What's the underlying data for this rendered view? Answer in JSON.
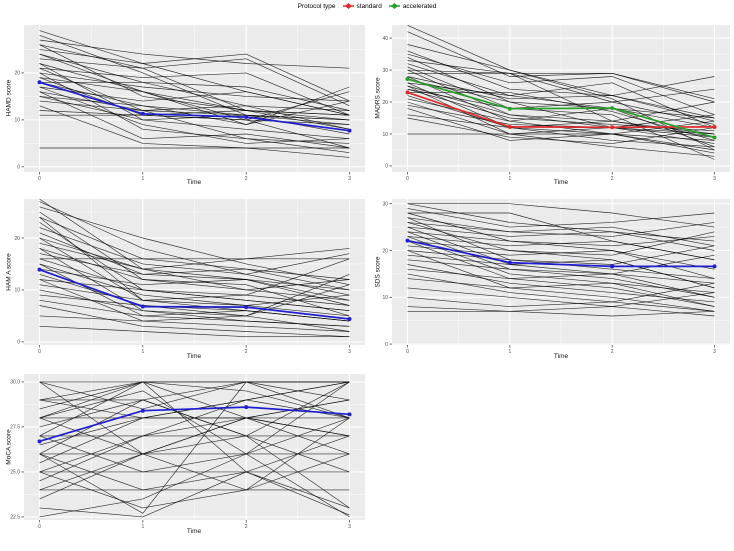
{
  "style": {
    "background": "#FFFFFF",
    "panel_bg": "#EBEBEB",
    "grid": "#FFFFFF",
    "tick_text": "#4D4D4D",
    "axis_title_text": "#111111",
    "subject_line": "#000000",
    "mean_blue": "#1F1FCF",
    "standard_red": "#DD2A2A",
    "accelerated_green": "#2B9E2B"
  },
  "chart_data": {
    "type": "line",
    "x": [
      0,
      1,
      2,
      3
    ],
    "xticks": [
      0,
      1,
      2,
      3
    ],
    "xtick_labels": [
      "0",
      "1",
      "2",
      "3"
    ],
    "xminor": [
      0.5,
      1.5,
      2.5
    ],
    "legend": {
      "title": "Protocol type",
      "items": [
        {
          "label": "standard",
          "color": "#DD2A2A"
        },
        {
          "label": "accelerated",
          "color": "#2B9E2B"
        }
      ]
    },
    "panels": [
      {
        "id": "hamd",
        "ylabel": "HAMD score",
        "xlabel": "Time",
        "ylim": [
          -1.1,
          30.2
        ],
        "yticks": [
          0,
          10,
          20
        ],
        "ytick_labels": [
          "0",
          "10",
          "20"
        ],
        "yminor": [
          5,
          15,
          25
        ],
        "series": [
          {
            "name": "mean",
            "color": "#1F1FCF",
            "values": [
              18,
              11.3,
              10.6,
              7.7
            ]
          }
        ],
        "subjects": [
          [
            29,
            22,
            24,
            14
          ],
          [
            28,
            20,
            11,
            10
          ],
          [
            27,
            24,
            22,
            21
          ],
          [
            26,
            15,
            12,
            8
          ],
          [
            26,
            21,
            23,
            13
          ],
          [
            25,
            22,
            16,
            11
          ],
          [
            24,
            16,
            10,
            4
          ],
          [
            24,
            18,
            17,
            12
          ],
          [
            23,
            21,
            12,
            11
          ],
          [
            22,
            10,
            11,
            9
          ],
          [
            22,
            16,
            9,
            17
          ],
          [
            21,
            19,
            20,
            11
          ],
          [
            21,
            12,
            6,
            5
          ],
          [
            20,
            17,
            15,
            14
          ],
          [
            20,
            8,
            6,
            3
          ],
          [
            19,
            16,
            12,
            10
          ],
          [
            19,
            11,
            10,
            16
          ],
          [
            18,
            18,
            13,
            8
          ],
          [
            18,
            13,
            11,
            7
          ],
          [
            17,
            9,
            5,
            6
          ],
          [
            17,
            14,
            16,
            11
          ],
          [
            16,
            12,
            13,
            12
          ],
          [
            16,
            6,
            7,
            4
          ],
          [
            15,
            13,
            9,
            14
          ],
          [
            15,
            10,
            8,
            6
          ],
          [
            14,
            12,
            11,
            10
          ],
          [
            13,
            5,
            4,
            2
          ],
          [
            12,
            11,
            12,
            11
          ],
          [
            11,
            11,
            10,
            9
          ],
          [
            4,
            4,
            4,
            4
          ]
        ]
      },
      {
        "id": "madrs",
        "ylabel": "MADRS score",
        "xlabel": "Time",
        "ylim": [
          -1.9,
          44.1
        ],
        "yticks": [
          0,
          10,
          20,
          30,
          40
        ],
        "ytick_labels": [
          "0",
          "10",
          "20",
          "30",
          "40"
        ],
        "yminor": [
          5,
          15,
          25,
          35
        ],
        "series": [
          {
            "name": "standard",
            "color": "#DD2A2A",
            "values": [
              23,
              12.2,
              12.1,
              12.2
            ]
          },
          {
            "name": "accelerated",
            "color": "#2B9E2B",
            "values": [
              27.2,
              17.9,
              18.1,
              8.9
            ]
          }
        ],
        "subjects": [
          [
            44,
            30,
            22,
            15
          ],
          [
            42,
            28,
            29,
            20
          ],
          [
            38,
            30,
            21,
            5
          ],
          [
            36,
            24,
            22,
            14
          ],
          [
            35,
            26,
            28,
            16
          ],
          [
            34,
            20,
            12,
            10
          ],
          [
            33,
            29,
            29,
            21
          ],
          [
            32,
            22,
            18,
            12
          ],
          [
            31,
            18,
            20,
            24
          ],
          [
            30,
            29,
            14,
            9
          ],
          [
            30,
            16,
            12,
            7
          ],
          [
            29,
            29,
            20,
            13
          ],
          [
            28,
            21,
            22,
            28
          ],
          [
            28,
            14,
            10,
            4
          ],
          [
            27,
            20,
            18,
            15
          ],
          [
            26,
            12,
            8,
            6
          ],
          [
            26,
            22,
            26,
            12
          ],
          [
            25,
            16,
            14,
            10
          ],
          [
            25,
            10,
            12,
            16
          ],
          [
            24,
            18,
            16,
            2
          ],
          [
            24,
            15,
            13,
            11
          ],
          [
            23,
            23,
            17,
            8
          ],
          [
            22,
            12,
            10,
            14
          ],
          [
            21,
            14,
            18,
            6
          ],
          [
            20,
            10,
            6,
            3
          ],
          [
            19,
            13,
            12,
            9
          ],
          [
            18,
            8,
            10,
            5
          ],
          [
            16,
            12,
            14,
            20
          ],
          [
            15,
            9,
            7,
            12
          ],
          [
            10,
            10,
            10,
            8
          ]
        ]
      },
      {
        "id": "hama",
        "ylabel": "HAM A score",
        "xlabel": "Time",
        "ylim": [
          -0.6,
          27.5
        ],
        "yticks": [
          0,
          10,
          20
        ],
        "ytick_labels": [
          "0",
          "10",
          "20"
        ],
        "yminor": [
          5,
          15,
          25
        ],
        "series": [
          {
            "name": "mean",
            "color": "#1F1FCF",
            "values": [
              13.9,
              6.8,
              6.7,
              4.4
            ]
          }
        ],
        "subjects": [
          [
            27.5,
            14,
            12,
            10
          ],
          [
            27,
            18,
            13,
            9
          ],
          [
            26,
            20,
            15,
            11
          ],
          [
            25,
            12,
            10,
            8
          ],
          [
            24,
            16,
            14,
            12
          ],
          [
            24,
            8,
            7,
            9
          ],
          [
            23,
            10,
            8,
            6
          ],
          [
            22,
            15,
            13,
            17
          ],
          [
            21,
            13,
            12,
            7
          ],
          [
            20,
            8,
            6,
            4
          ],
          [
            20,
            14,
            16,
            18
          ],
          [
            19,
            14,
            10,
            12
          ],
          [
            18,
            12,
            11,
            5
          ],
          [
            18,
            6,
            4,
            3
          ],
          [
            17,
            13,
            14,
            10
          ],
          [
            16,
            10,
            9,
            16
          ],
          [
            16,
            16,
            16,
            16
          ],
          [
            15,
            9,
            7,
            5
          ],
          [
            15,
            5,
            6,
            4
          ],
          [
            14,
            11,
            12,
            8
          ],
          [
            13,
            7,
            5,
            11
          ],
          [
            12,
            10,
            8,
            6
          ],
          [
            12,
            4,
            3,
            2
          ],
          [
            11,
            8,
            9,
            7
          ],
          [
            10,
            6,
            5,
            13
          ],
          [
            9,
            7,
            6,
            4
          ],
          [
            8,
            5,
            4,
            3
          ],
          [
            7,
            3,
            2,
            1
          ],
          [
            5,
            4,
            5,
            2
          ],
          [
            3,
            2,
            1,
            1
          ]
        ]
      },
      {
        "id": "sds",
        "ylabel": "SDS score",
        "xlabel": "Time",
        "ylim": [
          -0.2,
          31
        ],
        "yticks": [
          0,
          10,
          20,
          30
        ],
        "ytick_labels": [
          "0",
          "10",
          "20",
          "30"
        ],
        "yminor": [
          5,
          15,
          25
        ],
        "series": [
          {
            "name": "mean",
            "color": "#1F1FCF",
            "values": [
              22.1,
              17.4,
              16.6,
              16.6
            ]
          }
        ],
        "subjects": [
          [
            30,
            30,
            28,
            25
          ],
          [
            30,
            26,
            24,
            22
          ],
          [
            29,
            25,
            26,
            28
          ],
          [
            28,
            28,
            22,
            18
          ],
          [
            28,
            22,
            20,
            16
          ],
          [
            27,
            24,
            25,
            21
          ],
          [
            27,
            18,
            16,
            14
          ],
          [
            26,
            24,
            23,
            26
          ],
          [
            26,
            20,
            18,
            12
          ],
          [
            25,
            23,
            24,
            20
          ],
          [
            25,
            17,
            15,
            13
          ],
          [
            24,
            22,
            21,
            23
          ],
          [
            24,
            16,
            14,
            10
          ],
          [
            23,
            21,
            22,
            18
          ],
          [
            23,
            15,
            13,
            11
          ],
          [
            22,
            20,
            19,
            24
          ],
          [
            22,
            14,
            12,
            8
          ],
          [
            21,
            19,
            20,
            14
          ],
          [
            20,
            18,
            17,
            21
          ],
          [
            20,
            12,
            10,
            7
          ],
          [
            19,
            17,
            18,
            12
          ],
          [
            18,
            16,
            15,
            19
          ],
          [
            17,
            13,
            11,
            9
          ],
          [
            16,
            14,
            15,
            10
          ],
          [
            15,
            11,
            9,
            13
          ],
          [
            14,
            12,
            13,
            8
          ],
          [
            12,
            10,
            8,
            11
          ],
          [
            10,
            8,
            9,
            7
          ],
          [
            8,
            7,
            8,
            6
          ],
          [
            7,
            7,
            6,
            7
          ]
        ]
      },
      {
        "id": "moca",
        "ylabel": "MoCA score",
        "xlabel": "Time",
        "ylim": [
          22.33,
          30.44
        ],
        "yticks": [
          22.5,
          25.0,
          27.5,
          30.0
        ],
        "ytick_labels": [
          "22.5",
          "25.0",
          "27.5",
          "30.0"
        ],
        "yminor": [
          23.75,
          26.25,
          28.75
        ],
        "series": [
          {
            "name": "mean",
            "color": "#1F1FCF",
            "values": [
              26.7,
              28.4,
              28.6,
              28.2
            ]
          }
        ],
        "subjects": [
          [
            30,
            30,
            30,
            30
          ],
          [
            30,
            28.5,
            30,
            30
          ],
          [
            29,
            30,
            30,
            29
          ],
          [
            29,
            28,
            29,
            30
          ],
          [
            28.5,
            30,
            29.5,
            28
          ],
          [
            28,
            28,
            28,
            28
          ],
          [
            28,
            26,
            28,
            27
          ],
          [
            27.5,
            29,
            30,
            30
          ],
          [
            27,
            27,
            27,
            27
          ],
          [
            27,
            25,
            26,
            28
          ],
          [
            26.5,
            28,
            29,
            28
          ],
          [
            26,
            26,
            26,
            26
          ],
          [
            26,
            24,
            25,
            27
          ],
          [
            25.5,
            28,
            28,
            29
          ],
          [
            25,
            25,
            25,
            25
          ],
          [
            25,
            23,
            24,
            26
          ],
          [
            24.5,
            27,
            28,
            27
          ],
          [
            24,
            24,
            24,
            24
          ],
          [
            24,
            26,
            27,
            25
          ],
          [
            23.5,
            26,
            28,
            29
          ],
          [
            23,
            22.5,
            25,
            23
          ],
          [
            22.5,
            23.5,
            26,
            30
          ],
          [
            26,
            29,
            27,
            23
          ],
          [
            28,
            29.5,
            26,
            22.5
          ],
          [
            25,
            27,
            29,
            30
          ],
          [
            27,
            30,
            28,
            26
          ],
          [
            29,
            29,
            27,
            30
          ],
          [
            28,
            30,
            25,
            22.6
          ],
          [
            26,
            22.7,
            30,
            28
          ],
          [
            30,
            26,
            24,
            28
          ]
        ]
      }
    ]
  }
}
